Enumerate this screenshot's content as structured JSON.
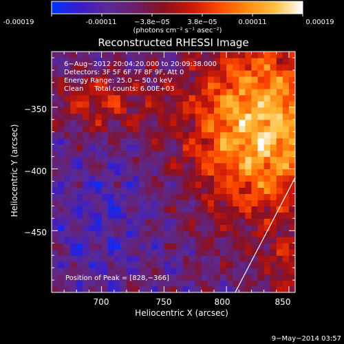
{
  "colorbar": {
    "ticks": [
      "-0.00019",
      "-0.00011",
      "−3.8e−05",
      "3.8e−05",
      "0.00011",
      "0.00019"
    ],
    "units_label": "(photons cm⁻² s⁻¹ asec⁻²)",
    "colors": [
      "#0033ff",
      "#3a1cc8",
      "#5a2a95",
      "#6a1f6a",
      "#8a1020",
      "#c81808",
      "#ff4a00",
      "#ff8a10",
      "#ffc040",
      "#ffffff"
    ]
  },
  "chart_data": {
    "type": "heatmap",
    "title": "Reconstructed RHESSI Image",
    "xlabel": "Heliocentric X (arcsec)",
    "ylabel": "Heliocentric Y (arcsec)",
    "xlim": [
      660,
      855
    ],
    "ylim": [
      -500,
      -305
    ],
    "x_ticks": [
      700,
      750,
      800,
      850
    ],
    "y_ticks": [
      -350,
      -400,
      -450
    ],
    "y_tick_labels": [
      "−350",
      "−400",
      "−450"
    ],
    "annotations": [
      "6−Aug−2012 20:04:20.000 to 20:09:38.000",
      "Detectors: 3F 5F 6F 7F 8F 9F, Att 0",
      "Energy Range: 25.0 − 50.0 keV",
      "Clean     Total counts: 6.00E+03"
    ],
    "peak_label": "Position of Peak = [828,−366]",
    "peak": [
      828,
      -366
    ],
    "limb_line": [
      [
        807,
        -500
      ],
      [
        855,
        -407
      ]
    ],
    "color_range": [
      -0.00019,
      0.00019
    ]
  },
  "footer": {
    "timestamp": "9−May−2014 03:57"
  }
}
